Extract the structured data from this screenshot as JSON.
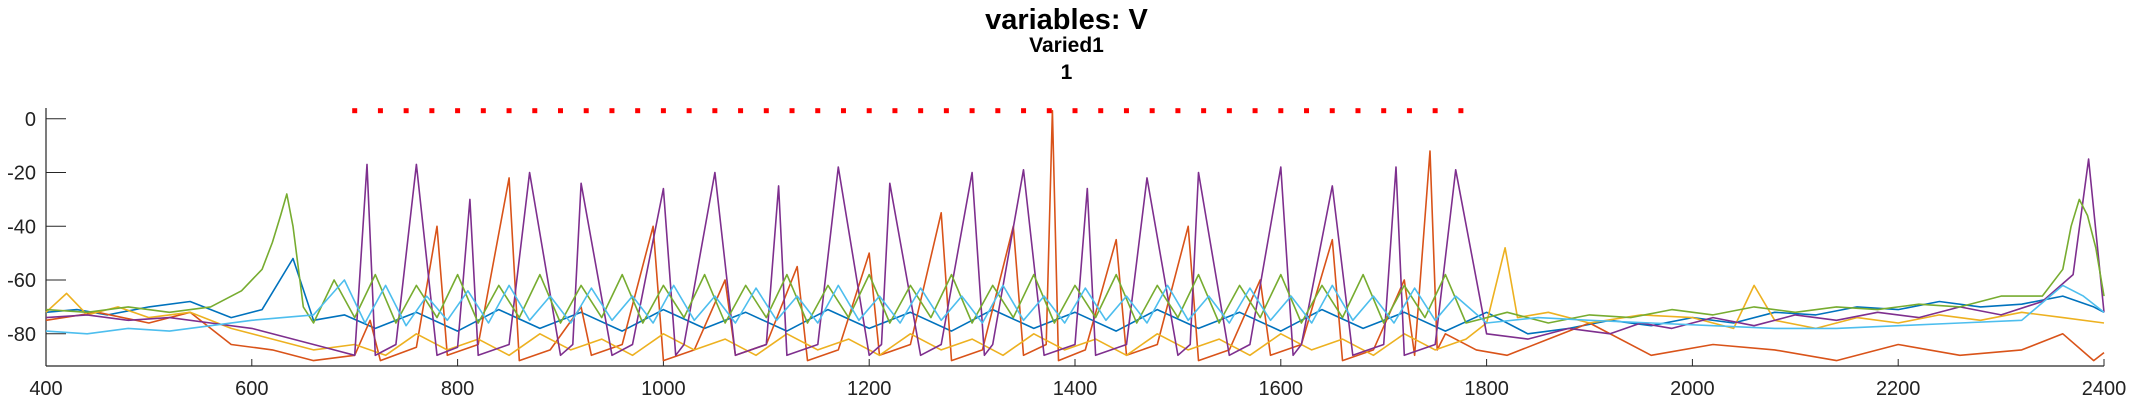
{
  "chart_data": {
    "type": "line",
    "title": "variables: V",
    "subtitle_lines": [
      "Varied1",
      "1"
    ],
    "xlabel": "",
    "ylabel": "",
    "xlim": [
      400,
      2400
    ],
    "ylim": [
      -92,
      4
    ],
    "x_ticks": [
      400,
      600,
      800,
      1000,
      1200,
      1400,
      1600,
      1800,
      2000,
      2200,
      2400
    ],
    "y_ticks": [
      0,
      -20,
      -40,
      -60,
      -80
    ],
    "grid": false,
    "legend": "none",
    "stimulus_markers": {
      "color": "#ff0000",
      "y": 3,
      "x": [
        700,
        725,
        750,
        775,
        800,
        825,
        850,
        875,
        900,
        925,
        950,
        975,
        1000,
        1025,
        1050,
        1075,
        1100,
        1125,
        1150,
        1175,
        1200,
        1225,
        1250,
        1275,
        1300,
        1325,
        1350,
        1375,
        1400,
        1425,
        1450,
        1475,
        1500,
        1525,
        1550,
        1575,
        1600,
        1625,
        1650,
        1675,
        1700,
        1725,
        1750,
        1775
      ]
    },
    "series": [
      {
        "color": "#0072BD",
        "x": [
          400,
          430,
          460,
          500,
          540,
          580,
          610,
          640,
          660,
          690,
          720,
          760,
          800,
          840,
          880,
          920,
          960,
          1000,
          1040,
          1080,
          1120,
          1160,
          1200,
          1240,
          1280,
          1320,
          1360,
          1400,
          1440,
          1480,
          1520,
          1560,
          1600,
          1640,
          1680,
          1720,
          1760,
          1800,
          1840,
          1880,
          1920,
          1960,
          2000,
          2040,
          2080,
          2120,
          2160,
          2200,
          2240,
          2280,
          2320,
          2360,
          2390,
          2400
        ],
        "y": [
          -72,
          -71,
          -73,
          -70,
          -68,
          -74,
          -71,
          -52,
          -75,
          -73,
          -78,
          -72,
          -79,
          -71,
          -78,
          -72,
          -79,
          -71,
          -78,
          -72,
          -79,
          -71,
          -78,
          -72,
          -79,
          -71,
          -78,
          -72,
          -79,
          -71,
          -78,
          -72,
          -79,
          -71,
          -78,
          -72,
          -79,
          -72,
          -80,
          -78,
          -75,
          -77,
          -74,
          -76,
          -72,
          -73,
          -70,
          -71,
          -68,
          -70,
          -69,
          -66,
          -70,
          -72
        ]
      },
      {
        "color": "#D95319",
        "x": [
          400,
          450,
          500,
          540,
          580,
          620,
          660,
          700,
          715,
          725,
          760,
          780,
          790,
          820,
          850,
          860,
          890,
          920,
          930,
          960,
          990,
          1000,
          1030,
          1060,
          1070,
          1100,
          1130,
          1140,
          1170,
          1200,
          1210,
          1240,
          1270,
          1280,
          1310,
          1340,
          1350,
          1372,
          1378,
          1384,
          1410,
          1440,
          1450,
          1480,
          1510,
          1520,
          1550,
          1580,
          1590,
          1620,
          1650,
          1660,
          1690,
          1720,
          1730,
          1745,
          1752,
          1760,
          1790,
          1820,
          1860,
          1900,
          1960,
          2020,
          2080,
          2140,
          2200,
          2260,
          2320,
          2360,
          2390,
          2400
        ],
        "y": [
          -75,
          -72,
          -76,
          -72,
          -84,
          -86,
          -90,
          -88,
          -75,
          -90,
          -85,
          -40,
          -88,
          -84,
          -22,
          -90,
          -86,
          -70,
          -88,
          -84,
          -40,
          -90,
          -86,
          -60,
          -88,
          -84,
          -55,
          -90,
          -86,
          -50,
          -88,
          -84,
          -35,
          -90,
          -86,
          -40,
          -88,
          -84,
          3,
          -90,
          -86,
          -45,
          -88,
          -84,
          -40,
          -90,
          -86,
          -60,
          -88,
          -84,
          -45,
          -90,
          -86,
          -60,
          -88,
          -12,
          -86,
          -80,
          -86,
          -88,
          -82,
          -76,
          -88,
          -84,
          -86,
          -90,
          -84,
          -88,
          -86,
          -80,
          -90,
          -87
        ]
      },
      {
        "color": "#EDB120",
        "x": [
          400,
          420,
          440,
          470,
          500,
          540,
          580,
          620,
          660,
          700,
          730,
          760,
          790,
          820,
          850,
          880,
          910,
          940,
          970,
          1000,
          1030,
          1060,
          1090,
          1120,
          1150,
          1180,
          1210,
          1240,
          1270,
          1300,
          1330,
          1360,
          1390,
          1420,
          1450,
          1480,
          1510,
          1540,
          1570,
          1600,
          1630,
          1660,
          1690,
          1720,
          1750,
          1780,
          1800,
          1818,
          1830,
          1860,
          1900,
          1950,
          2000,
          2040,
          2060,
          2080,
          2120,
          2160,
          2200,
          2240,
          2280,
          2320,
          2360,
          2400
        ],
        "y": [
          -72,
          -65,
          -73,
          -70,
          -74,
          -72,
          -78,
          -82,
          -86,
          -84,
          -88,
          -80,
          -86,
          -82,
          -88,
          -80,
          -86,
          -82,
          -88,
          -80,
          -86,
          -82,
          -88,
          -80,
          -86,
          -82,
          -88,
          -80,
          -86,
          -82,
          -88,
          -80,
          -86,
          -82,
          -88,
          -80,
          -86,
          -82,
          -88,
          -80,
          -86,
          -82,
          -88,
          -80,
          -86,
          -82,
          -76,
          -48,
          -74,
          -72,
          -76,
          -73,
          -74,
          -78,
          -62,
          -75,
          -78,
          -74,
          -76,
          -73,
          -75,
          -72,
          -74,
          -76
        ]
      },
      {
        "color": "#7E2F8E",
        "x": [
          400,
          440,
          480,
          520,
          560,
          600,
          640,
          680,
          700,
          712,
          720,
          740,
          760,
          780,
          800,
          812,
          820,
          850,
          870,
          900,
          912,
          920,
          950,
          970,
          1000,
          1012,
          1020,
          1050,
          1070,
          1100,
          1112,
          1120,
          1150,
          1170,
          1200,
          1212,
          1220,
          1250,
          1270,
          1300,
          1312,
          1320,
          1350,
          1370,
          1400,
          1412,
          1420,
          1450,
          1470,
          1500,
          1512,
          1520,
          1550,
          1570,
          1600,
          1612,
          1620,
          1650,
          1670,
          1700,
          1712,
          1720,
          1750,
          1770,
          1800,
          1840,
          1880,
          1920,
          1950,
          1980,
          2020,
          2060,
          2100,
          2140,
          2180,
          2220,
          2260,
          2300,
          2340,
          2370,
          2385,
          2400
        ],
        "y": [
          -74,
          -73,
          -75,
          -74,
          -76,
          -78,
          -82,
          -86,
          -88,
          -17,
          -88,
          -84,
          -17,
          -88,
          -85,
          -30,
          -88,
          -84,
          -20,
          -88,
          -84,
          -24,
          -88,
          -84,
          -26,
          -88,
          -84,
          -20,
          -88,
          -84,
          -25,
          -88,
          -84,
          -18,
          -88,
          -84,
          -24,
          -88,
          -84,
          -20,
          -88,
          -84,
          -19,
          -88,
          -84,
          -26,
          -88,
          -84,
          -22,
          -88,
          -84,
          -20,
          -88,
          -84,
          -18,
          -88,
          -84,
          -25,
          -88,
          -84,
          -18,
          -88,
          -84,
          -19,
          -80,
          -82,
          -78,
          -80,
          -76,
          -78,
          -74,
          -77,
          -73,
          -75,
          -72,
          -74,
          -70,
          -73,
          -68,
          -58,
          -15,
          -72
        ]
      },
      {
        "color": "#77AC30",
        "x": [
          400,
          440,
          480,
          520,
          560,
          590,
          610,
          620,
          628,
          634,
          640,
          650,
          660,
          680,
          700,
          720,
          740,
          760,
          780,
          800,
          820,
          840,
          860,
          880,
          900,
          920,
          940,
          960,
          980,
          1000,
          1020,
          1040,
          1060,
          1080,
          1100,
          1120,
          1140,
          1160,
          1180,
          1200,
          1220,
          1240,
          1260,
          1280,
          1300,
          1320,
          1340,
          1360,
          1380,
          1400,
          1420,
          1440,
          1460,
          1480,
          1500,
          1520,
          1540,
          1560,
          1580,
          1600,
          1620,
          1640,
          1660,
          1680,
          1700,
          1720,
          1740,
          1760,
          1780,
          1820,
          1860,
          1900,
          1940,
          1980,
          2020,
          2060,
          2100,
          2140,
          2180,
          2220,
          2260,
          2300,
          2340,
          2360,
          2368,
          2376,
          2384,
          2392,
          2400
        ],
        "y": [
          -71,
          -72,
          -70,
          -72,
          -70,
          -64,
          -56,
          -46,
          -36,
          -28,
          -40,
          -70,
          -76,
          -60,
          -74,
          -58,
          -76,
          -62,
          -74,
          -58,
          -76,
          -62,
          -74,
          -58,
          -76,
          -62,
          -74,
          -58,
          -76,
          -62,
          -74,
          -58,
          -76,
          -62,
          -74,
          -58,
          -76,
          -62,
          -74,
          -58,
          -76,
          -62,
          -74,
          -58,
          -76,
          -62,
          -74,
          -58,
          -76,
          -62,
          -74,
          -58,
          -76,
          -62,
          -74,
          -58,
          -76,
          -62,
          -74,
          -58,
          -76,
          -62,
          -74,
          -58,
          -76,
          -62,
          -74,
          -58,
          -76,
          -72,
          -76,
          -73,
          -74,
          -71,
          -73,
          -70,
          -72,
          -70,
          -71,
          -69,
          -70,
          -66,
          -66,
          -56,
          -40,
          -30,
          -36,
          -48,
          -66
        ]
      },
      {
        "color": "#4DBEEE",
        "x": [
          400,
          440,
          480,
          520,
          560,
          600,
          630,
          660,
          690,
          710,
          730,
          750,
          770,
          790,
          810,
          830,
          850,
          870,
          890,
          910,
          930,
          950,
          970,
          990,
          1010,
          1030,
          1050,
          1070,
          1090,
          1110,
          1130,
          1150,
          1170,
          1190,
          1210,
          1230,
          1250,
          1270,
          1290,
          1310,
          1330,
          1350,
          1370,
          1390,
          1410,
          1430,
          1450,
          1470,
          1490,
          1510,
          1530,
          1550,
          1570,
          1590,
          1610,
          1630,
          1650,
          1670,
          1690,
          1710,
          1730,
          1750,
          1770,
          1800,
          1850,
          1900,
          1960,
          2020,
          2080,
          2140,
          2200,
          2260,
          2320,
          2360,
          2380,
          2400
        ],
        "y": [
          -79,
          -80,
          -78,
          -79,
          -77,
          -75,
          -74,
          -73,
          -60,
          -76,
          -62,
          -77,
          -66,
          -75,
          -64,
          -76,
          -62,
          -75,
          -66,
          -76,
          -63,
          -75,
          -66,
          -76,
          -62,
          -75,
          -66,
          -76,
          -63,
          -75,
          -66,
          -76,
          -62,
          -75,
          -66,
          -76,
          -63,
          -75,
          -66,
          -76,
          -62,
          -75,
          -66,
          -76,
          -63,
          -75,
          -66,
          -76,
          -62,
          -75,
          -66,
          -76,
          -63,
          -75,
          -66,
          -76,
          -62,
          -75,
          -66,
          -76,
          -63,
          -75,
          -66,
          -76,
          -74,
          -75,
          -76,
          -77,
          -78,
          -78,
          -77,
          -76,
          -75,
          -62,
          -66,
          -72
        ]
      }
    ]
  }
}
